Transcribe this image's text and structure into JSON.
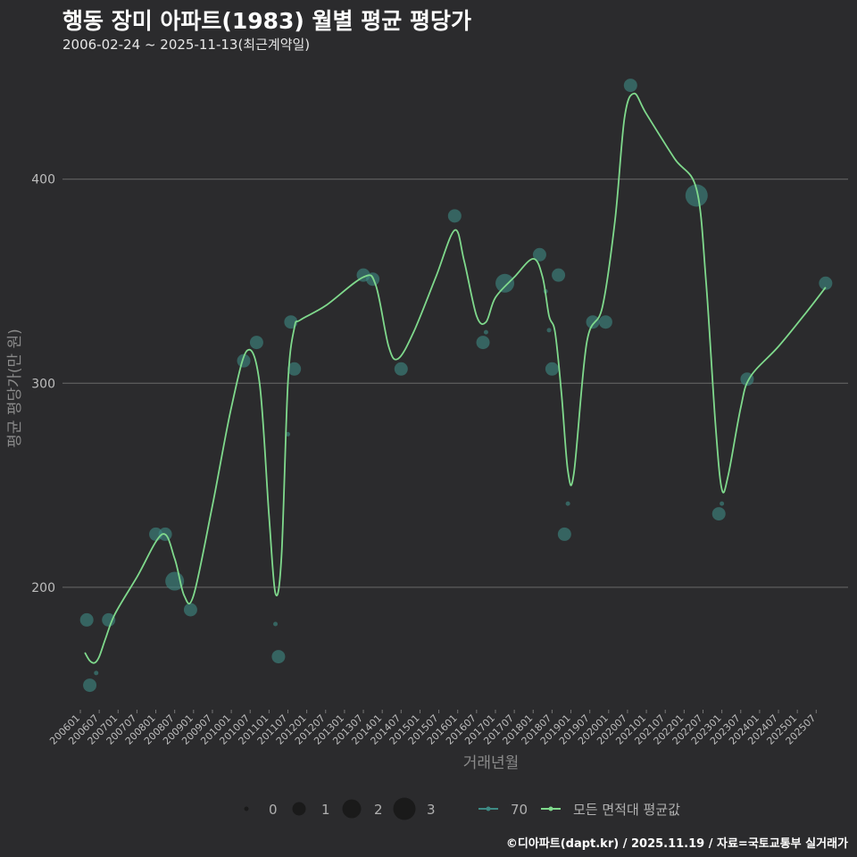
{
  "header": {
    "title": "행동 장미 아파트(1983) 월별 평균 평당가",
    "subtitle": "2006-02-24 ~ 2025-11-13(최근계약일)"
  },
  "footer": {
    "credit": "©디아파트(dapt.kr) / 2025.11.19 / 자료=국토교통부 실거래가"
  },
  "colors": {
    "background": "#2b2b2d",
    "series_area": "#3e8a84",
    "series_avg": "#7fd98c",
    "grid": "#6a6a6a"
  },
  "chart_data": {
    "type": "line",
    "title": "행동 장미 아파트(1983) 월별 평균 평당가",
    "xlabel": "거래년월",
    "ylabel": "평균 평당가(만 원)",
    "ylim": [
      140,
      455
    ],
    "yticks": [
      200,
      300,
      400
    ],
    "xlim": [
      2006.0,
      2025.99
    ],
    "xtick_labels": [
      "200601",
      "200607",
      "200701",
      "200707",
      "200801",
      "200807",
      "200901",
      "200907",
      "201001",
      "201007",
      "201101",
      "201107",
      "201201",
      "201207",
      "201301",
      "201307",
      "201401",
      "201407",
      "201501",
      "201507",
      "201601",
      "201607",
      "201701",
      "201707",
      "201801",
      "201807",
      "201901",
      "201907",
      "202001",
      "202007",
      "202101",
      "202107",
      "202201",
      "202207",
      "202301",
      "202307",
      "202401",
      "202407",
      "202501",
      "202507"
    ],
    "legend": {
      "size_title": "",
      "sizes": [
        "0",
        "1",
        "2",
        "3"
      ],
      "series": [
        "70",
        "모든 면적대 평균값"
      ]
    },
    "series": [
      {
        "name": "70",
        "kind": "scatter_sized",
        "points": [
          {
            "t": 2006.17,
            "v": 184,
            "n": 1
          },
          {
            "t": 2006.25,
            "v": 152,
            "n": 1
          },
          {
            "t": 2006.42,
            "v": 158,
            "n": 0
          },
          {
            "t": 2006.75,
            "v": 184,
            "n": 1
          },
          {
            "t": 2008.0,
            "v": 226,
            "n": 1
          },
          {
            "t": 2008.25,
            "v": 226,
            "n": 1
          },
          {
            "t": 2008.5,
            "v": 203,
            "n": 2
          },
          {
            "t": 2008.92,
            "v": 189,
            "n": 1
          },
          {
            "t": 2010.33,
            "v": 311,
            "n": 1
          },
          {
            "t": 2010.67,
            "v": 320,
            "n": 1
          },
          {
            "t": 2011.17,
            "v": 182,
            "n": 0
          },
          {
            "t": 2011.25,
            "v": 166,
            "n": 1
          },
          {
            "t": 2011.5,
            "v": 275,
            "n": 0
          },
          {
            "t": 2011.58,
            "v": 330,
            "n": 1
          },
          {
            "t": 2011.67,
            "v": 307,
            "n": 1
          },
          {
            "t": 2013.5,
            "v": 353,
            "n": 1
          },
          {
            "t": 2013.75,
            "v": 351,
            "n": 1
          },
          {
            "t": 2014.5,
            "v": 307,
            "n": 1
          },
          {
            "t": 2015.92,
            "v": 382,
            "n": 1
          },
          {
            "t": 2016.67,
            "v": 320,
            "n": 1
          },
          {
            "t": 2016.75,
            "v": 325,
            "n": 0
          },
          {
            "t": 2017.25,
            "v": 349,
            "n": 2
          },
          {
            "t": 2018.17,
            "v": 363,
            "n": 1
          },
          {
            "t": 2018.33,
            "v": 345,
            "n": 0
          },
          {
            "t": 2018.42,
            "v": 326,
            "n": 0
          },
          {
            "t": 2018.5,
            "v": 307,
            "n": 1
          },
          {
            "t": 2018.67,
            "v": 353,
            "n": 1
          },
          {
            "t": 2018.83,
            "v": 226,
            "n": 1
          },
          {
            "t": 2018.92,
            "v": 241,
            "n": 0
          },
          {
            "t": 2019.58,
            "v": 330,
            "n": 1
          },
          {
            "t": 2019.92,
            "v": 330,
            "n": 1
          },
          {
            "t": 2020.58,
            "v": 446,
            "n": 1
          },
          {
            "t": 2022.33,
            "v": 392,
            "n": 3
          },
          {
            "t": 2022.92,
            "v": 236,
            "n": 1
          },
          {
            "t": 2023.0,
            "v": 241,
            "n": 0
          },
          {
            "t": 2023.67,
            "v": 302,
            "n": 1
          },
          {
            "t": 2025.75,
            "v": 349,
            "n": 1
          }
        ]
      },
      {
        "name": "모든 면적대 평균값",
        "kind": "smooth_line",
        "points": [
          {
            "t": 2006.12,
            "v": 168
          },
          {
            "t": 2006.25,
            "v": 164
          },
          {
            "t": 2006.38,
            "v": 163
          },
          {
            "t": 2006.5,
            "v": 166
          },
          {
            "t": 2006.67,
            "v": 175
          },
          {
            "t": 2006.92,
            "v": 187
          },
          {
            "t": 2007.5,
            "v": 205
          },
          {
            "t": 2008.17,
            "v": 226
          },
          {
            "t": 2008.5,
            "v": 214
          },
          {
            "t": 2008.75,
            "v": 196
          },
          {
            "t": 2009.0,
            "v": 196
          },
          {
            "t": 2009.5,
            "v": 240
          },
          {
            "t": 2010.0,
            "v": 288
          },
          {
            "t": 2010.42,
            "v": 316
          },
          {
            "t": 2010.75,
            "v": 300
          },
          {
            "t": 2011.0,
            "v": 235
          },
          {
            "t": 2011.17,
            "v": 197
          },
          {
            "t": 2011.33,
            "v": 215
          },
          {
            "t": 2011.5,
            "v": 300
          },
          {
            "t": 2011.67,
            "v": 327
          },
          {
            "t": 2011.83,
            "v": 331
          },
          {
            "t": 2012.5,
            "v": 338
          },
          {
            "t": 2013.5,
            "v": 352
          },
          {
            "t": 2013.83,
            "v": 348
          },
          {
            "t": 2014.17,
            "v": 318
          },
          {
            "t": 2014.42,
            "v": 312
          },
          {
            "t": 2014.83,
            "v": 325
          },
          {
            "t": 2015.42,
            "v": 352
          },
          {
            "t": 2015.92,
            "v": 375
          },
          {
            "t": 2016.17,
            "v": 360
          },
          {
            "t": 2016.5,
            "v": 333
          },
          {
            "t": 2016.75,
            "v": 330
          },
          {
            "t": 2017.0,
            "v": 342
          },
          {
            "t": 2017.5,
            "v": 352
          },
          {
            "t": 2018.0,
            "v": 361
          },
          {
            "t": 2018.25,
            "v": 352
          },
          {
            "t": 2018.42,
            "v": 333
          },
          {
            "t": 2018.58,
            "v": 325
          },
          {
            "t": 2018.75,
            "v": 295
          },
          {
            "t": 2018.92,
            "v": 257
          },
          {
            "t": 2019.08,
            "v": 256
          },
          {
            "t": 2019.42,
            "v": 320
          },
          {
            "t": 2019.83,
            "v": 337
          },
          {
            "t": 2020.17,
            "v": 380
          },
          {
            "t": 2020.42,
            "v": 430
          },
          {
            "t": 2020.67,
            "v": 442
          },
          {
            "t": 2021.0,
            "v": 432
          },
          {
            "t": 2021.75,
            "v": 410
          },
          {
            "t": 2022.33,
            "v": 395
          },
          {
            "t": 2022.58,
            "v": 350
          },
          {
            "t": 2022.83,
            "v": 280
          },
          {
            "t": 2023.0,
            "v": 248
          },
          {
            "t": 2023.17,
            "v": 255
          },
          {
            "t": 2023.5,
            "v": 288
          },
          {
            "t": 2023.75,
            "v": 303
          },
          {
            "t": 2024.5,
            "v": 318
          },
          {
            "t": 2025.25,
            "v": 335
          },
          {
            "t": 2025.75,
            "v": 347
          }
        ]
      }
    ]
  }
}
